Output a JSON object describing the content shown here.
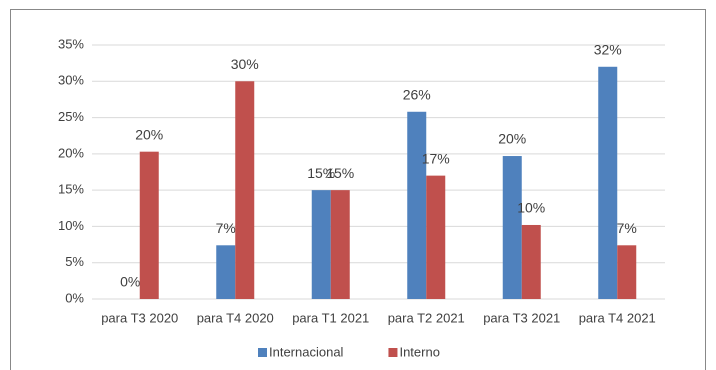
{
  "chart_data": {
    "type": "bar",
    "categories": [
      "para T3 2020",
      "para T4 2020",
      "para T1 2021",
      "para T2 2021",
      "para T3 2021",
      "para T4 2021"
    ],
    "series": [
      {
        "name": "Internacional",
        "color": "#4f81bd",
        "values": [
          0,
          7.4,
          15,
          25.8,
          19.7,
          32
        ],
        "value_labels": [
          "0%",
          "7%",
          "15%",
          "26%",
          "20%",
          "32%"
        ]
      },
      {
        "name": "Interno",
        "color": "#c0504d",
        "values": [
          20.3,
          30,
          15,
          17,
          10.2,
          7.4
        ],
        "value_labels": [
          "20%",
          "30%",
          "15%",
          "17%",
          "10%",
          "7%"
        ]
      }
    ],
    "ylim": [
      0,
      35
    ],
    "yticks": [
      {
        "value": 0,
        "label": "0%"
      },
      {
        "value": 5,
        "label": "5%"
      },
      {
        "value": 10,
        "label": "10%"
      },
      {
        "value": 15,
        "label": "15%"
      },
      {
        "value": 20,
        "label": "20%"
      },
      {
        "value": 25,
        "label": "25%"
      },
      {
        "value": 30,
        "label": "30%"
      },
      {
        "value": 35,
        "label": "35%"
      }
    ],
    "grid": true,
    "legend": "bottom"
  }
}
